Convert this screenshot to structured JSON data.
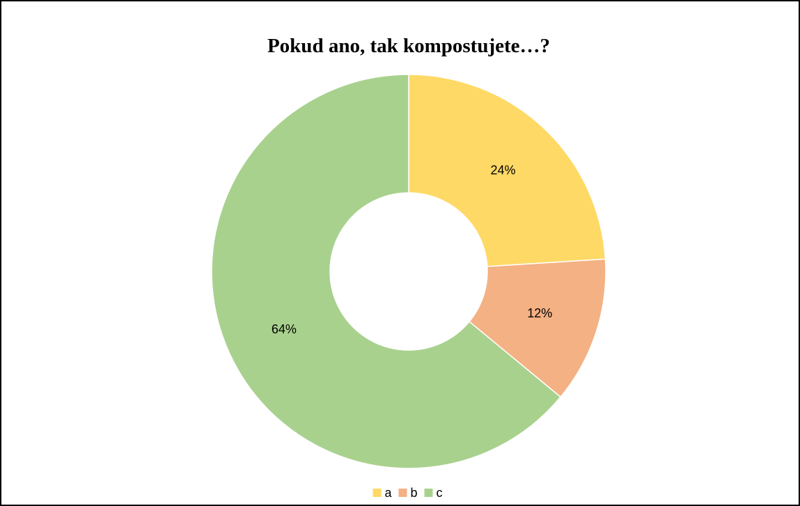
{
  "chart_data": {
    "type": "donut",
    "title": "Pokud ano, tak kompostujete…?",
    "categories": [
      "a",
      "b",
      "c"
    ],
    "values": [
      24,
      12,
      64
    ],
    "value_labels": [
      "24%",
      "12%",
      "64%"
    ],
    "colors": [
      "#ffd966",
      "#f4b183",
      "#a9d18e"
    ],
    "legend": "bottom"
  }
}
